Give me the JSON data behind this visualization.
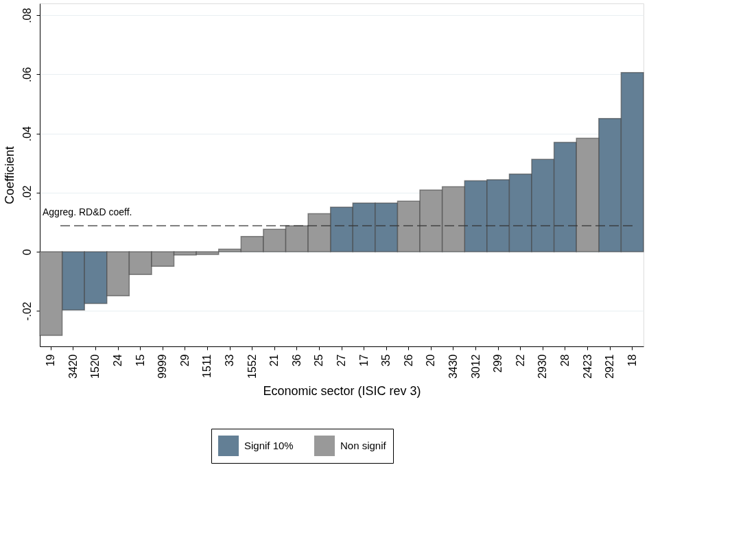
{
  "chart_data": {
    "type": "bar",
    "xlabel": "Economic sector (ISIC rev 3)",
    "ylabel": "Coefficient",
    "categories": [
      "19",
      "3420",
      "1520",
      "24",
      "15",
      "9999",
      "29",
      "1511",
      "33",
      "1552",
      "21",
      "36",
      "25",
      "27",
      "17",
      "35",
      "26",
      "20",
      "3430",
      "3012",
      "299",
      "22",
      "2930",
      "28",
      "2423",
      "2921",
      "18"
    ],
    "series": [
      {
        "name": "Signif 10%",
        "color": "#637f95",
        "values": [
          null,
          -0.0197,
          -0.0175,
          null,
          null,
          null,
          null,
          null,
          null,
          null,
          null,
          null,
          null,
          0.0151,
          0.0165,
          0.0165,
          null,
          null,
          null,
          0.024,
          0.0244,
          0.0263,
          0.0313,
          0.037,
          null,
          0.0451,
          0.0606
        ]
      },
      {
        "name": "Non signif",
        "color": "#999999",
        "values": [
          -0.0283,
          null,
          null,
          -0.0149,
          -0.0077,
          -0.0049,
          -0.0011,
          -0.0009,
          0.0009,
          0.0052,
          0.0076,
          0.0088,
          0.0129,
          null,
          null,
          null,
          0.0171,
          0.0209,
          0.022,
          null,
          null,
          null,
          null,
          null,
          0.0384,
          null,
          null
        ]
      }
    ],
    "ylim": [
      -0.032,
      0.084
    ],
    "yticks": [
      {
        "value": -0.02,
        "label": "-.02"
      },
      0,
      {
        "value": 0.02,
        "label": ".02"
      },
      {
        "value": 0.04,
        "label": ".04"
      },
      {
        "value": 0.06,
        "label": ".06"
      },
      {
        "value": 0.08,
        "label": ".08"
      }
    ],
    "grid": "y",
    "legend": "bottom",
    "ref_lines": [
      {
        "axis": "y",
        "value": 0.0088,
        "label": "Aggreg. RD&D coeff.",
        "color": "#333333",
        "line_style": "dashed"
      }
    ]
  }
}
